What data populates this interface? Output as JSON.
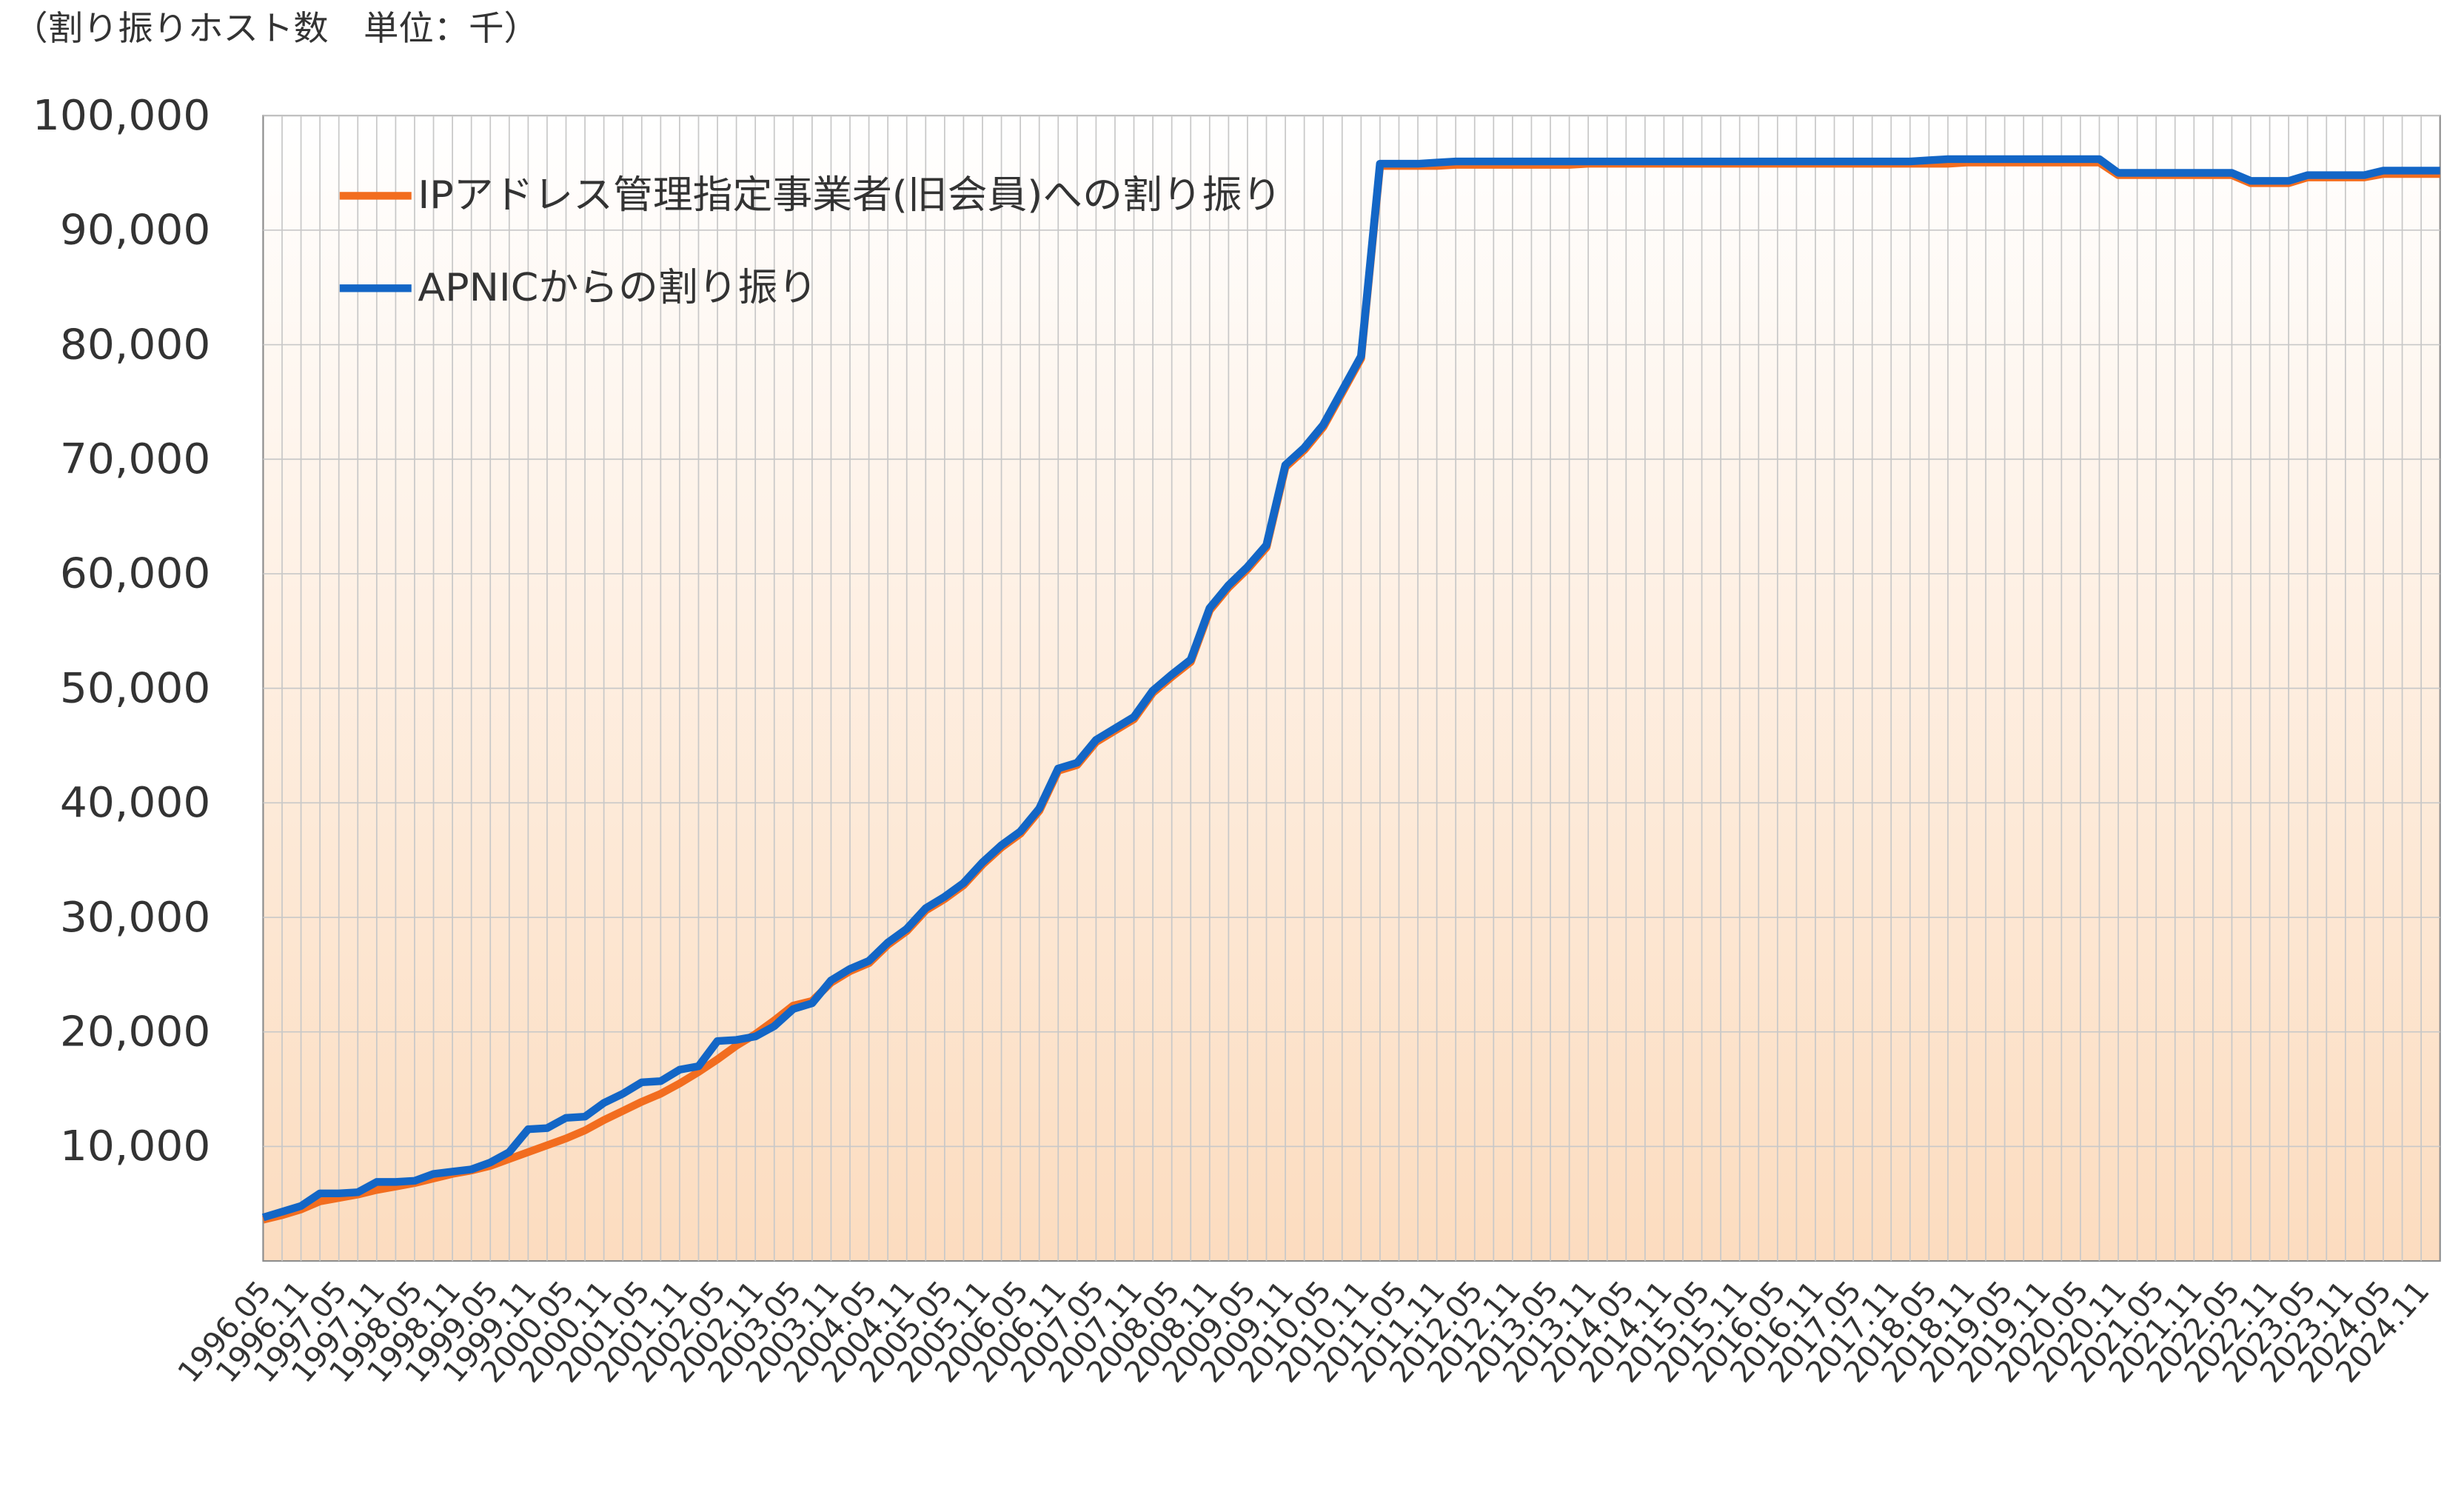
{
  "chart_data": {
    "type": "line",
    "ylabel": "（割り振りホスト数　単位：千）",
    "categories": [
      "1996.05",
      null,
      "1996.11",
      null,
      "1997.05",
      null,
      "1997.11",
      null,
      "1998.05",
      null,
      "1998.11",
      null,
      "1999.05",
      null,
      "1999.11",
      null,
      "2000.05",
      null,
      "2000.11",
      null,
      "2001.05",
      null,
      "2001.11",
      null,
      "2002.05",
      null,
      "2002.11",
      null,
      "2003.05",
      null,
      "2003.11",
      null,
      "2004.05",
      null,
      "2004.11",
      null,
      "2005.05",
      null,
      "2005.11",
      null,
      "2006.05",
      null,
      "2006.11",
      null,
      "2007.05",
      null,
      "2007.11",
      null,
      "2008.05",
      null,
      "2008.11",
      null,
      "2009.05",
      null,
      "2009.11",
      null,
      "2010.05",
      null,
      "2010.11",
      null,
      "2011.05",
      null,
      "2011.11",
      null,
      "2012.05",
      null,
      "2012.11",
      null,
      "2013.05",
      null,
      "2013.11",
      null,
      "2014.05",
      null,
      "2014.11",
      null,
      "2015.05",
      null,
      "2015.11",
      null,
      "2016.05",
      null,
      "2016.11",
      null,
      "2017.05",
      null,
      "2017.11",
      null,
      "2018.05",
      null,
      "2018.11",
      null,
      "2019.05",
      null,
      "2019.11",
      null,
      "2020.05",
      null,
      "2020.11",
      null,
      "2021.05",
      null,
      "2021.11",
      null,
      "2022.05",
      null,
      "2022.11",
      null,
      "2023.05",
      null,
      "2023.11",
      null,
      "2024.05",
      null,
      "2024.11",
      null
    ],
    "series": [
      {
        "name": "IPアドレス管理指定事業者(旧会員)への割り振り",
        "color": "#f26d1f",
        "values": [
          3600,
          4000,
          4500,
          5200,
          5500,
          5800,
          6200,
          6500,
          6800,
          7200,
          7600,
          7900,
          8300,
          8900,
          9500,
          10100,
          10700,
          11400,
          12300,
          13100,
          13900,
          14600,
          15500,
          16500,
          17600,
          18800,
          19800,
          21000,
          22300,
          22700,
          24300,
          25300,
          26000,
          27600,
          28800,
          30600,
          31600,
          32800,
          34600,
          36100,
          37300,
          39300,
          42800,
          43300,
          45300,
          46300,
          47300,
          49600,
          51000,
          52300,
          56800,
          58800,
          60400,
          62300,
          69300,
          70800,
          72800,
          75800,
          78800,
          95600,
          95600,
          95600,
          95600,
          95700,
          95700,
          95700,
          95700,
          95700,
          95700,
          95700,
          95800,
          95800,
          95800,
          95800,
          95800,
          95800,
          95800,
          95800,
          95800,
          95800,
          95800,
          95800,
          95800,
          95800,
          95800,
          95800,
          95800,
          95800,
          95800,
          95800,
          95900,
          95900,
          95900,
          95900,
          95900,
          95900,
          95900,
          95900,
          94800,
          94800,
          94800,
          94800,
          94800,
          94800,
          94800,
          94100,
          94100,
          94100,
          94600,
          94600,
          94600,
          94600,
          94900,
          94900,
          94900,
          94900
        ]
      },
      {
        "name": "APNICからの割り振り",
        "color": "#1366c6",
        "values": [
          3800,
          4300,
          4800,
          5900,
          5900,
          6000,
          6900,
          6900,
          7000,
          7600,
          7800,
          8000,
          8600,
          9500,
          11500,
          11600,
          12500,
          12600,
          13800,
          14600,
          15600,
          15700,
          16700,
          17000,
          19200,
          19300,
          19600,
          20500,
          22000,
          22500,
          24500,
          25500,
          26200,
          27800,
          29000,
          30800,
          31800,
          33000,
          34800,
          36300,
          37500,
          39500,
          43000,
          43500,
          45500,
          46500,
          47500,
          49800,
          51200,
          52500,
          57000,
          59000,
          60600,
          62500,
          69500,
          71000,
          73000,
          76000,
          79000,
          95800,
          95800,
          95800,
          95900,
          96000,
          96000,
          96000,
          96000,
          96000,
          96000,
          96000,
          96000,
          96000,
          96000,
          96000,
          96000,
          96000,
          96000,
          96000,
          96000,
          96000,
          96000,
          96000,
          96000,
          96000,
          96000,
          96000,
          96000,
          96000,
          96100,
          96200,
          96200,
          96200,
          96200,
          96200,
          96200,
          96200,
          96200,
          96200,
          95000,
          95000,
          95000,
          95000,
          95000,
          95000,
          95000,
          94300,
          94300,
          94300,
          94800,
          94800,
          94800,
          94800,
          95200,
          95200,
          95200,
          95200
        ]
      }
    ],
    "ylim": [
      0,
      100000
    ],
    "yticks": [
      {
        "value": 10000,
        "label": "10,000"
      },
      {
        "value": 20000,
        "label": "20,000"
      },
      {
        "value": 30000,
        "label": "30,000"
      },
      {
        "value": 40000,
        "label": "40,000"
      },
      {
        "value": 50000,
        "label": "50,000"
      },
      {
        "value": 60000,
        "label": "60,000"
      },
      {
        "value": 70000,
        "label": "70,000"
      },
      {
        "value": 80000,
        "label": "80,000"
      },
      {
        "value": 90000,
        "label": "90,000"
      },
      {
        "value": 100000,
        "label": "100,000"
      }
    ],
    "grid": true,
    "legend": "upper left"
  }
}
